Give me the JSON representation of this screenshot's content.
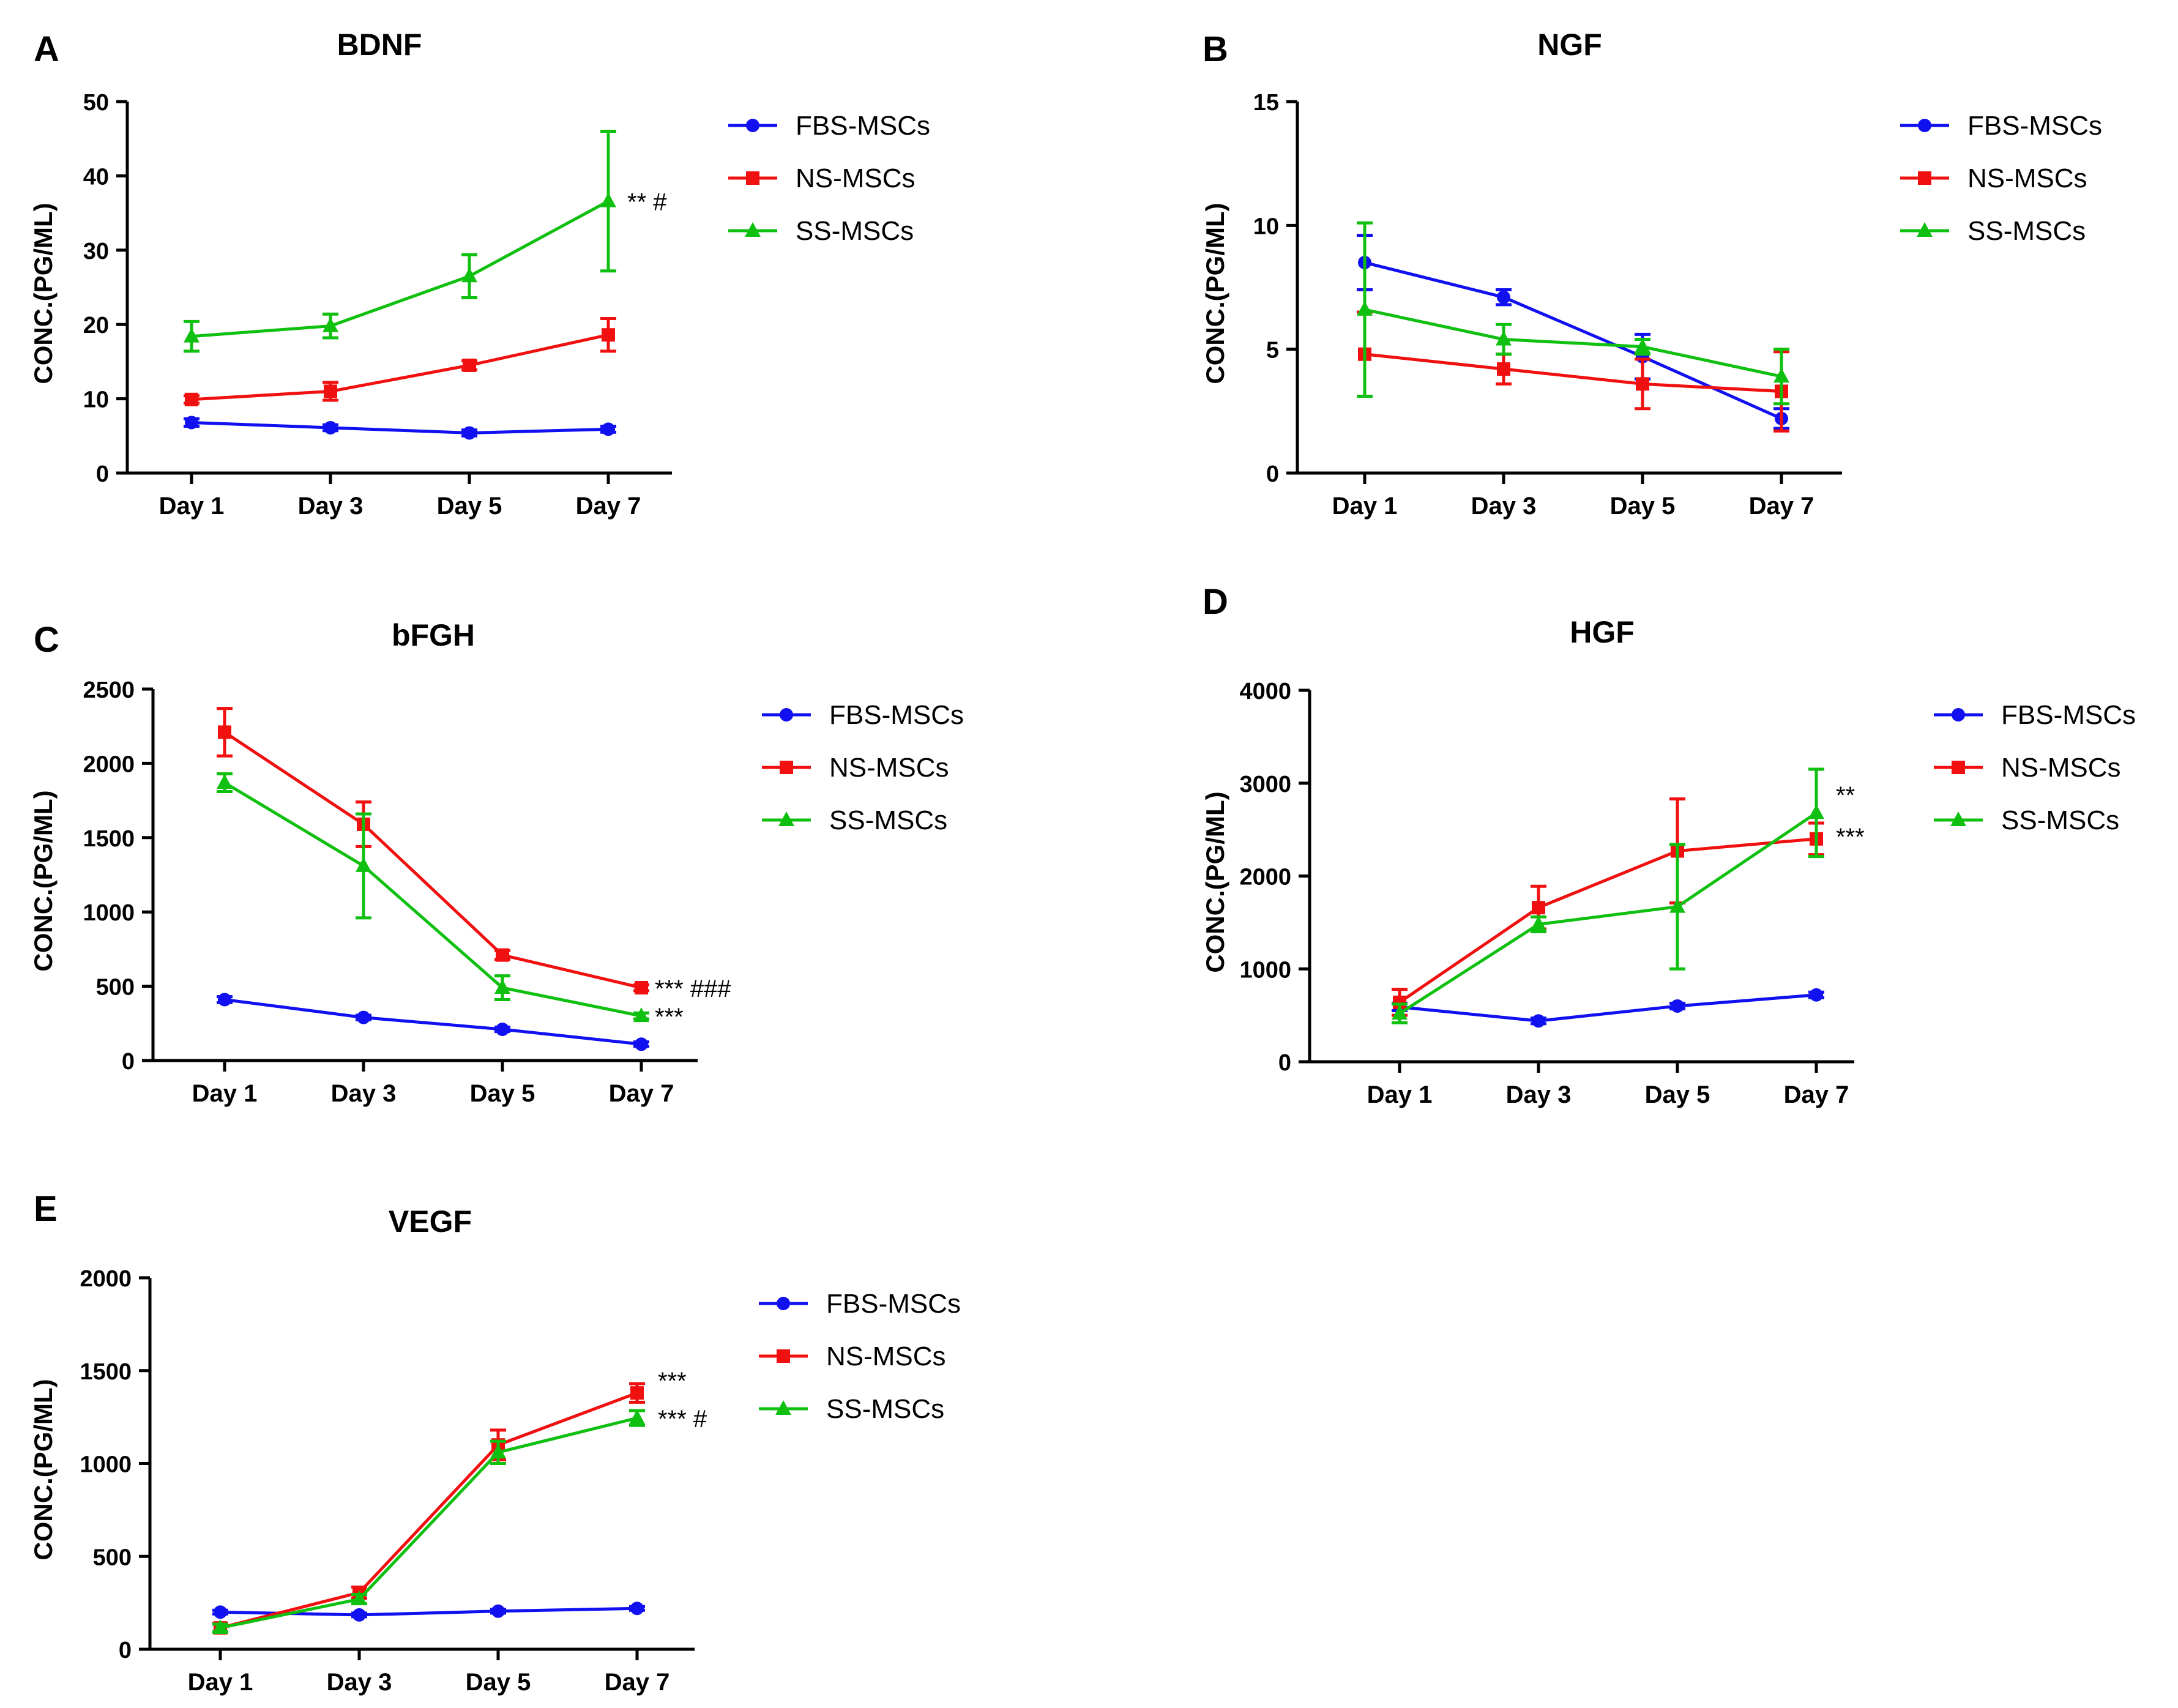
{
  "colors": {
    "FBS-MSCs": "#1010f0",
    "NS-MSCs": "#f01010",
    "SS-MSCs": "#10c010",
    "axis": "#000000"
  },
  "chart_data": [
    {
      "type": "line",
      "panel": "A",
      "title": "BDNF",
      "categories": [
        "Day 1",
        "Day 3",
        "Day 5",
        "Day 7"
      ],
      "ylabel": "CONC.(PG/ML)",
      "ylim": [
        0,
        50
      ],
      "yticks": [
        0,
        10,
        20,
        30,
        40,
        50
      ],
      "series": [
        {
          "name": "FBS-MSCs",
          "marker": "circle",
          "values": [
            6.8,
            6.1,
            5.4,
            5.9
          ],
          "errors": [
            0.5,
            0.4,
            0.4,
            0.4
          ]
        },
        {
          "name": "NS-MSCs",
          "marker": "square",
          "values": [
            9.9,
            11.0,
            14.5,
            18.6
          ],
          "errors": [
            0.5,
            1.2,
            0.6,
            2.2
          ]
        },
        {
          "name": "SS-MSCs",
          "marker": "triangle",
          "values": [
            18.4,
            19.8,
            26.5,
            36.6
          ],
          "errors": [
            2.0,
            1.6,
            2.9,
            9.4
          ]
        }
      ],
      "annotations": [
        {
          "text": "** #",
          "category": "Day 7",
          "y": 36.6
        }
      ]
    },
    {
      "type": "line",
      "panel": "B",
      "title": "NGF",
      "categories": [
        "Day 1",
        "Day 3",
        "Day 5",
        "Day 7"
      ],
      "ylabel": "CONC.(PG/ML)",
      "ylim": [
        0,
        15
      ],
      "yticks": [
        0,
        5,
        10,
        15
      ],
      "series": [
        {
          "name": "FBS-MSCs",
          "marker": "circle",
          "values": [
            8.5,
            7.1,
            4.7,
            2.2
          ],
          "errors": [
            1.1,
            0.3,
            0.9,
            0.4
          ]
        },
        {
          "name": "NS-MSCs",
          "marker": "square",
          "values": [
            4.8,
            4.2,
            3.6,
            3.3
          ],
          "errors": [
            1.7,
            0.6,
            1.0,
            1.6
          ]
        },
        {
          "name": "SS-MSCs",
          "marker": "triangle",
          "values": [
            6.6,
            5.4,
            5.1,
            3.9
          ],
          "errors": [
            3.5,
            0.6,
            0.3,
            1.1
          ]
        }
      ],
      "annotations": []
    },
    {
      "type": "line",
      "panel": "C",
      "title": "bFGH",
      "categories": [
        "Day 1",
        "Day 3",
        "Day 5",
        "Day 7"
      ],
      "ylabel": "CONC.(PG/ML)",
      "ylim": [
        0,
        2500
      ],
      "yticks": [
        0,
        500,
        1000,
        1500,
        2000,
        2500
      ],
      "series": [
        {
          "name": "FBS-MSCs",
          "marker": "circle",
          "values": [
            410,
            290,
            210,
            110
          ],
          "errors": [
            20,
            15,
            15,
            15
          ]
        },
        {
          "name": "NS-MSCs",
          "marker": "square",
          "values": [
            2210,
            1590,
            710,
            490
          ],
          "errors": [
            160,
            150,
            30,
            20
          ]
        },
        {
          "name": "SS-MSCs",
          "marker": "triangle",
          "values": [
            1870,
            1310,
            490,
            300
          ],
          "errors": [
            60,
            350,
            80,
            20
          ]
        }
      ],
      "annotations": [
        {
          "text": "*** ###",
          "category": "Day 7",
          "y": 490
        },
        {
          "text": "***",
          "category": "Day 7",
          "y": 300
        }
      ]
    },
    {
      "type": "line",
      "panel": "D",
      "title": "HGF",
      "categories": [
        "Day 1",
        "Day 3",
        "Day 5",
        "Day 7"
      ],
      "ylabel": "CONC.(PG/ML)",
      "ylim": [
        0,
        4000
      ],
      "yticks": [
        0,
        1000,
        2000,
        3000,
        4000
      ],
      "series": [
        {
          "name": "FBS-MSCs",
          "marker": "circle",
          "values": [
            590,
            440,
            600,
            720
          ],
          "errors": [
            40,
            30,
            30,
            30
          ]
        },
        {
          "name": "NS-MSCs",
          "marker": "square",
          "values": [
            640,
            1660,
            2270,
            2400
          ],
          "errors": [
            140,
            230,
            560,
            170
          ]
        },
        {
          "name": "SS-MSCs",
          "marker": "triangle",
          "values": [
            520,
            1480,
            1670,
            2680
          ],
          "errors": [
            100,
            80,
            670,
            470
          ]
        }
      ],
      "annotations": [
        {
          "text": "**",
          "category": "Day 7",
          "y": 2880
        },
        {
          "text": "***",
          "category": "Day 7",
          "y": 2430
        }
      ]
    },
    {
      "type": "line",
      "panel": "E",
      "title": "VEGF",
      "categories": [
        "Day 1",
        "Day 3",
        "Day 5",
        "Day 7"
      ],
      "ylabel": "CONC.(PG/ML)",
      "ylim": [
        0,
        2000
      ],
      "yticks": [
        0,
        500,
        1000,
        1500,
        2000
      ],
      "series": [
        {
          "name": "FBS-MSCs",
          "marker": "circle",
          "values": [
            200,
            185,
            205,
            220
          ],
          "errors": [
            10,
            10,
            10,
            10
          ]
        },
        {
          "name": "NS-MSCs",
          "marker": "square",
          "values": [
            115,
            305,
            1100,
            1380
          ],
          "errors": [
            25,
            30,
            80,
            50
          ]
        },
        {
          "name": "SS-MSCs",
          "marker": "triangle",
          "values": [
            115,
            270,
            1060,
            1245
          ],
          "errors": [
            20,
            25,
            60,
            40
          ]
        }
      ],
      "annotations": [
        {
          "text": "***",
          "category": "Day 7",
          "y": 1450
        },
        {
          "text": "*** #",
          "category": "Day 7",
          "y": 1245
        }
      ]
    }
  ]
}
